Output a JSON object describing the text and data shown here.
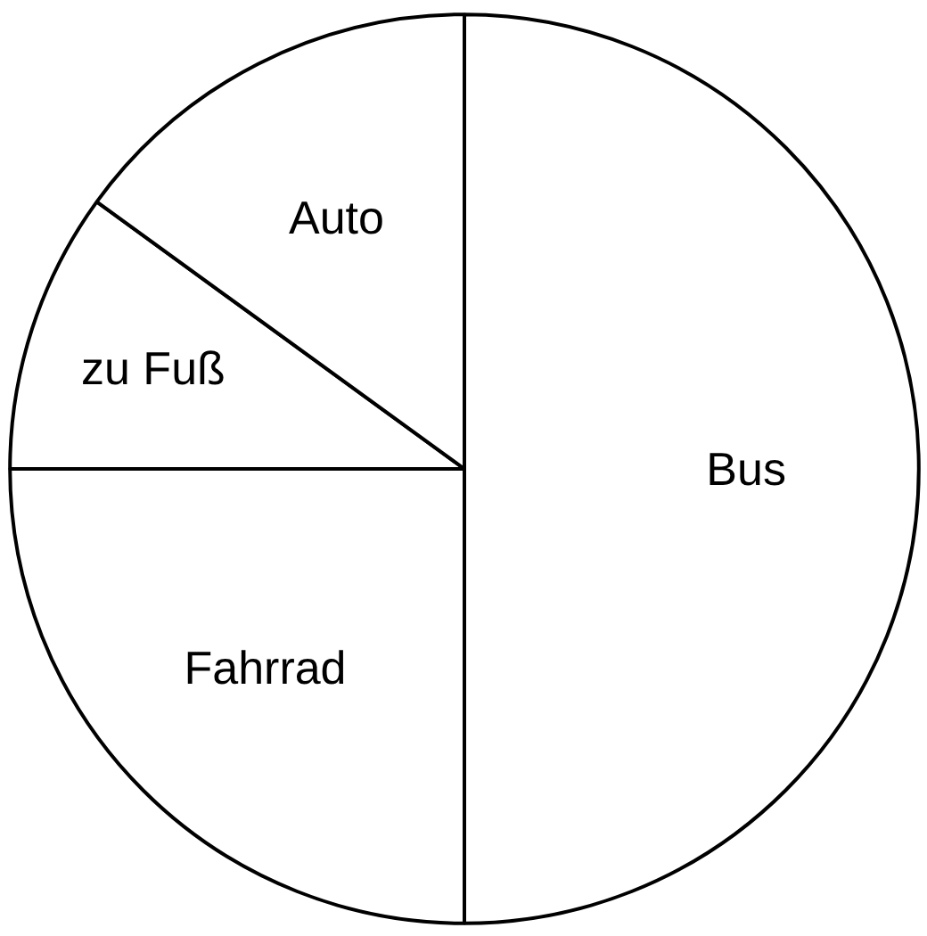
{
  "chart_data": {
    "type": "pie",
    "categories": [
      "Bus",
      "Fahrrad",
      "zu Fuß",
      "Auto"
    ],
    "values": [
      50,
      25,
      10,
      15
    ],
    "colors": [
      "#ffffff",
      "#ffffff",
      "#ffffff",
      "#ffffff"
    ],
    "legend": false
  }
}
